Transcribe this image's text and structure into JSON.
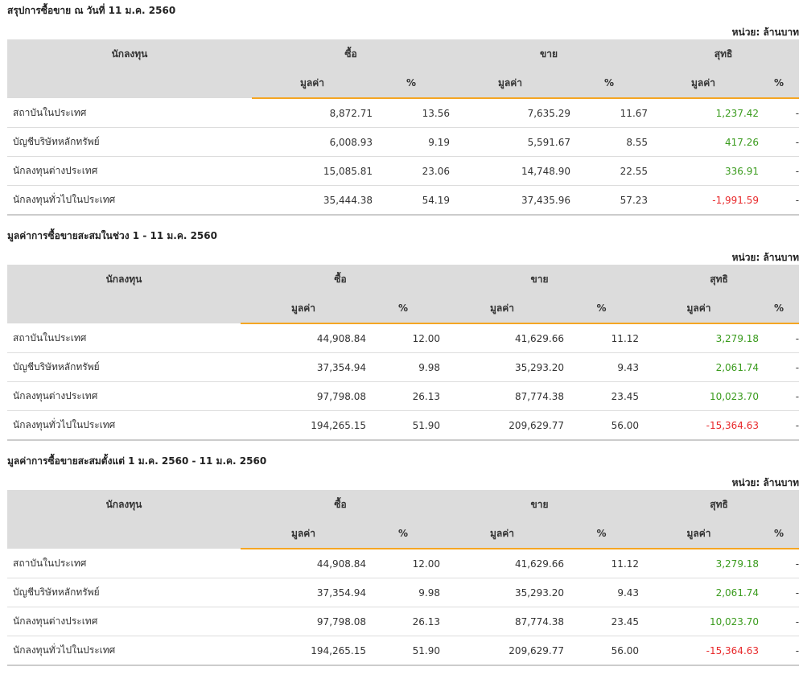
{
  "unit_label": "หน่วย: ล้านบาท",
  "headers": {
    "investor": "นักลงทุน",
    "buy": "ซื้อ",
    "sell": "ขาย",
    "net": "สุทธิ",
    "value": "มูลค่า",
    "pct": "%"
  },
  "sections": [
    {
      "title": "สรุปการซื้อขาย ณ วันที่ 11 ม.ค. 2560",
      "rows": [
        {
          "name": "สถาบันในประเทศ",
          "buy_value": "8,872.71",
          "buy_pct": "13.56",
          "sell_value": "7,635.29",
          "sell_pct": "11.67",
          "net_value": "1,237.42",
          "net_pct": "-",
          "net_sign": "pos"
        },
        {
          "name": "บัญชีบริษัทหลักทรัพย์",
          "buy_value": "6,008.93",
          "buy_pct": "9.19",
          "sell_value": "5,591.67",
          "sell_pct": "8.55",
          "net_value": "417.26",
          "net_pct": "-",
          "net_sign": "pos"
        },
        {
          "name": "นักลงทุนต่างประเทศ",
          "buy_value": "15,085.81",
          "buy_pct": "23.06",
          "sell_value": "14,748.90",
          "sell_pct": "22.55",
          "net_value": "336.91",
          "net_pct": "-",
          "net_sign": "pos"
        },
        {
          "name": "นักลงทุนทั่วไปในประเทศ",
          "buy_value": "35,444.38",
          "buy_pct": "54.19",
          "sell_value": "37,435.96",
          "sell_pct": "57.23",
          "net_value": "-1,991.59",
          "net_pct": "-",
          "net_sign": "neg"
        }
      ]
    },
    {
      "title": "มูลค่าการซื้อขายสะสมในช่วง 1 - 11 ม.ค. 2560",
      "rows": [
        {
          "name": "สถาบันในประเทศ",
          "buy_value": "44,908.84",
          "buy_pct": "12.00",
          "sell_value": "41,629.66",
          "sell_pct": "11.12",
          "net_value": "3,279.18",
          "net_pct": "-",
          "net_sign": "pos"
        },
        {
          "name": "บัญชีบริษัทหลักทรัพย์",
          "buy_value": "37,354.94",
          "buy_pct": "9.98",
          "sell_value": "35,293.20",
          "sell_pct": "9.43",
          "net_value": "2,061.74",
          "net_pct": "-",
          "net_sign": "pos"
        },
        {
          "name": "นักลงทุนต่างประเทศ",
          "buy_value": "97,798.08",
          "buy_pct": "26.13",
          "sell_value": "87,774.38",
          "sell_pct": "23.45",
          "net_value": "10,023.70",
          "net_pct": "-",
          "net_sign": "pos"
        },
        {
          "name": "นักลงทุนทั่วไปในประเทศ",
          "buy_value": "194,265.15",
          "buy_pct": "51.90",
          "sell_value": "209,629.77",
          "sell_pct": "56.00",
          "net_value": "-15,364.63",
          "net_pct": "-",
          "net_sign": "neg"
        }
      ]
    },
    {
      "title": "มูลค่าการซื้อขายสะสมตั้งแต่ 1 ม.ค. 2560 - 11 ม.ค. 2560",
      "rows": [
        {
          "name": "สถาบันในประเทศ",
          "buy_value": "44,908.84",
          "buy_pct": "12.00",
          "sell_value": "41,629.66",
          "sell_pct": "11.12",
          "net_value": "3,279.18",
          "net_pct": "-",
          "net_sign": "pos"
        },
        {
          "name": "บัญชีบริษัทหลักทรัพย์",
          "buy_value": "37,354.94",
          "buy_pct": "9.98",
          "sell_value": "35,293.20",
          "sell_pct": "9.43",
          "net_value": "2,061.74",
          "net_pct": "-",
          "net_sign": "pos"
        },
        {
          "name": "นักลงทุนต่างประเทศ",
          "buy_value": "97,798.08",
          "buy_pct": "26.13",
          "sell_value": "87,774.38",
          "sell_pct": "23.45",
          "net_value": "10,023.70",
          "net_pct": "-",
          "net_sign": "pos"
        },
        {
          "name": "นักลงทุนทั่วไปในประเทศ",
          "buy_value": "194,265.15",
          "buy_pct": "51.90",
          "sell_value": "209,629.77",
          "sell_pct": "56.00",
          "net_value": "-15,364.63",
          "net_pct": "-",
          "net_sign": "neg"
        }
      ]
    }
  ]
}
